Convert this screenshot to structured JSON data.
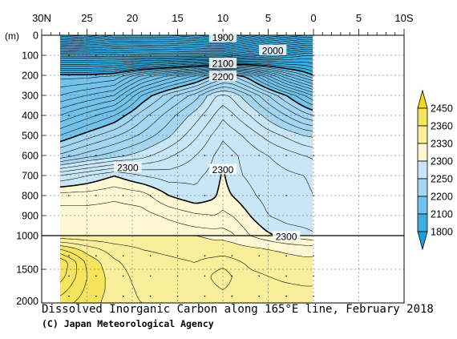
{
  "chart_data": {
    "type": "heatmap",
    "title": "Dissolved Inorganic Carbon along 165°E line, February 2018",
    "credit": "(C) Japan Meteorological Agency",
    "x_ticks": [
      {
        "value": 30,
        "label": "30N"
      },
      {
        "value": 25,
        "label": "25"
      },
      {
        "value": 20,
        "label": "20"
      },
      {
        "value": 15,
        "label": "15"
      },
      {
        "value": 10,
        "label": "10"
      },
      {
        "value": 5,
        "label": "5"
      },
      {
        "value": 0,
        "label": "0"
      },
      {
        "value": -5,
        "label": "5"
      },
      {
        "value": -10,
        "label": "10S"
      }
    ],
    "xlim": [
      30,
      -10
    ],
    "data_xlim": [
      28,
      0
    ],
    "depth_unit": "(m)",
    "upper_ticks": [
      0,
      100,
      200,
      300,
      400,
      500,
      600,
      700,
      800,
      900,
      1000
    ],
    "lower_ticks": [
      1500,
      2000
    ],
    "ylim": [
      0,
      2000
    ],
    "legend": {
      "levels": [
        "1800",
        "2100",
        "2200",
        "2250",
        "2300",
        "2330",
        "2360",
        "2450"
      ],
      "colors": [
        "#1aa0d8",
        "#3eaee0",
        "#73c2e9",
        "#a4d6f1",
        "#c9e6f7",
        "#fdf7d4",
        "#f8ee9b",
        "#f4e45e",
        "#f1d81a"
      ]
    },
    "contour_labels": [
      {
        "text": "1900",
        "lat": 10,
        "depth": 10
      },
      {
        "text": "2000",
        "lat": 4.5,
        "depth": 75
      },
      {
        "text": "2100",
        "lat": 10,
        "depth": 140
      },
      {
        "text": "2200",
        "lat": 10,
        "depth": 205
      },
      {
        "text": "2300",
        "lat": 20.5,
        "depth": 660
      },
      {
        "text": "2300",
        "lat": 10,
        "depth": 670
      },
      {
        "text": "2300",
        "lat": 3,
        "depth": 1012
      }
    ],
    "sections": [
      {
        "lat": [
          28,
          25,
          22,
          19,
          16,
          13,
          11,
          10,
          9,
          7,
          5,
          3,
          1,
          0
        ],
        "depth": [
          0,
          100,
          200,
          300,
          400,
          500,
          600,
          700,
          800,
          900,
          1000
        ],
        "values": [
          [
            1870,
            1880,
            1900,
            1900,
            1900,
            1890,
            1880,
            1880,
            1890,
            1910,
            1930,
            1940,
            1950,
            1950
          ],
          [
            2005,
            2005,
            2005,
            2002,
            2000,
            2000,
            2000,
            2000,
            2010,
            2020,
            2030,
            2040,
            2050,
            2050
          ],
          [
            2105,
            2105,
            2110,
            2140,
            2160,
            2180,
            2200,
            2210,
            2210,
            2190,
            2160,
            2130,
            2110,
            2100
          ],
          [
            2130,
            2140,
            2150,
            2190,
            2215,
            2235,
            2258,
            2262,
            2258,
            2240,
            2220,
            2200,
            2180,
            2170
          ],
          [
            2160,
            2175,
            2190,
            2215,
            2235,
            2255,
            2270,
            2278,
            2272,
            2260,
            2245,
            2230,
            2215,
            2210
          ],
          [
            2190,
            2205,
            2218,
            2232,
            2248,
            2268,
            2282,
            2288,
            2285,
            2276,
            2266,
            2258,
            2250,
            2248
          ],
          [
            2222,
            2235,
            2245,
            2255,
            2268,
            2280,
            2290,
            2295,
            2292,
            2286,
            2280,
            2275,
            2270,
            2268
          ],
          [
            2280,
            2290,
            2300,
            2290,
            2285,
            2288,
            2293,
            2302,
            2293,
            2288,
            2285,
            2282,
            2280,
            2278
          ],
          [
            2315,
            2315,
            2318,
            2315,
            2300,
            2292,
            2298,
            2305,
            2300,
            2292,
            2286,
            2284,
            2282,
            2280
          ],
          [
            2325,
            2325,
            2325,
            2324,
            2318,
            2312,
            2310,
            2312,
            2310,
            2300,
            2290,
            2286,
            2284,
            2282
          ],
          [
            2330,
            2330,
            2330,
            2330,
            2328,
            2326,
            2325,
            2325,
            2322,
            2310,
            2302,
            2296,
            2294,
            2292
          ]
        ]
      },
      {
        "lat": [
          28,
          25,
          22,
          19,
          16,
          13,
          11,
          10,
          9,
          7,
          5,
          3,
          1,
          0
        ],
        "depth": [
          1000,
          1200,
          1400,
          1600,
          1800,
          2000
        ],
        "values": [
          [
            2332,
            2332,
            2332,
            2332,
            2332,
            2330,
            2328,
            2328,
            2326,
            2320,
            2314,
            2308,
            2304,
            2302
          ],
          [
            2370,
            2355,
            2345,
            2340,
            2338,
            2336,
            2334,
            2334,
            2334,
            2332,
            2330,
            2328,
            2326,
            2326
          ],
          [
            2400,
            2368,
            2352,
            2344,
            2342,
            2340,
            2344,
            2346,
            2343,
            2338,
            2336,
            2334,
            2333,
            2333
          ],
          [
            2395,
            2370,
            2355,
            2346,
            2344,
            2342,
            2352,
            2356,
            2350,
            2342,
            2340,
            2338,
            2337,
            2337
          ],
          [
            2385,
            2368,
            2356,
            2348,
            2346,
            2345,
            2348,
            2350,
            2348,
            2345,
            2343,
            2342,
            2341,
            2341
          ],
          [
            2375,
            2365,
            2355,
            2350,
            2348,
            2347,
            2348,
            2348,
            2347,
            2346,
            2345,
            2344,
            2343,
            2343
          ]
        ]
      }
    ]
  }
}
